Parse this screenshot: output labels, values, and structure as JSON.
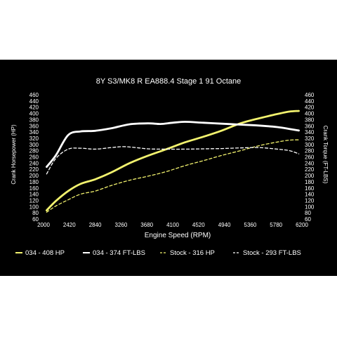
{
  "chart_data": {
    "type": "line",
    "title": "8Y S3/MK8 R EA888.4 Stage 1 91 Octane",
    "xlabel": "Engine Speed (RPM)",
    "ylabel_left": "Crank Horsepower (HP)",
    "ylabel_right": "Crank Torque (FT-LBS)",
    "xlim": [
      2000,
      6200
    ],
    "ylim_left": [
      60,
      460
    ],
    "ylim_right": [
      60,
      460
    ],
    "x_ticks": [
      2000,
      2420,
      2840,
      3260,
      3680,
      4100,
      4520,
      4940,
      5360,
      5780,
      6200
    ],
    "y_ticks_left": [
      60,
      80,
      100,
      120,
      140,
      160,
      180,
      200,
      220,
      240,
      260,
      280,
      300,
      320,
      340,
      360,
      380,
      400,
      420,
      440,
      460
    ],
    "y_ticks_right": [
      60,
      80,
      100,
      120,
      140,
      160,
      180,
      200,
      220,
      240,
      260,
      280,
      300,
      320,
      340,
      360,
      380,
      400,
      420,
      440,
      460
    ],
    "grid": false,
    "legend_position": "bottom",
    "colors": {
      "tuned": "#ffffff",
      "stock": "#f2f26e",
      "background": "#000000",
      "text": "#ffffff"
    },
    "series": [
      {
        "name": "034 - 408 HP",
        "style": "solid",
        "color": "#f2f26e",
        "x": [
          2050,
          2200,
          2400,
          2600,
          2840,
          3100,
          3400,
          3700,
          4000,
          4300,
          4600,
          4900,
          5200,
          5500,
          5800,
          6000,
          6150
        ],
        "y": [
          88,
          118,
          150,
          173,
          188,
          210,
          240,
          264,
          285,
          307,
          325,
          345,
          368,
          384,
          398,
          406,
          408
        ]
      },
      {
        "name": "034 - 374 FT-LBS",
        "style": "solid",
        "color": "#ffffff",
        "x": [
          2050,
          2200,
          2400,
          2600,
          2840,
          3100,
          3400,
          3700,
          3900,
          4100,
          4300,
          4600,
          4900,
          5200,
          5500,
          5800,
          6000,
          6150
        ],
        "y": [
          228,
          265,
          330,
          342,
          344,
          352,
          365,
          368,
          366,
          370,
          373,
          370,
          367,
          364,
          361,
          356,
          350,
          345
        ]
      },
      {
        "name": "Stock - 316 HP",
        "style": "dashed",
        "color": "#f2f26e",
        "x": [
          2050,
          2200,
          2400,
          2600,
          2840,
          3100,
          3400,
          3700,
          4000,
          4300,
          4600,
          4900,
          5200,
          5500,
          5800,
          6000,
          6150
        ],
        "y": [
          82,
          102,
          122,
          140,
          150,
          168,
          185,
          198,
          213,
          232,
          248,
          265,
          280,
          296,
          308,
          314,
          315
        ]
      },
      {
        "name": "Stock - 293 FT-LBS",
        "style": "dashed",
        "color": "#ffffff",
        "x": [
          2050,
          2200,
          2400,
          2600,
          2840,
          3100,
          3300,
          3500,
          3700,
          4000,
          4300,
          4600,
          4900,
          5200,
          5500,
          5800,
          6000,
          6150
        ],
        "y": [
          205,
          255,
          285,
          288,
          285,
          290,
          293,
          290,
          286,
          285,
          285,
          286,
          287,
          289,
          290,
          285,
          280,
          270
        ]
      }
    ]
  }
}
